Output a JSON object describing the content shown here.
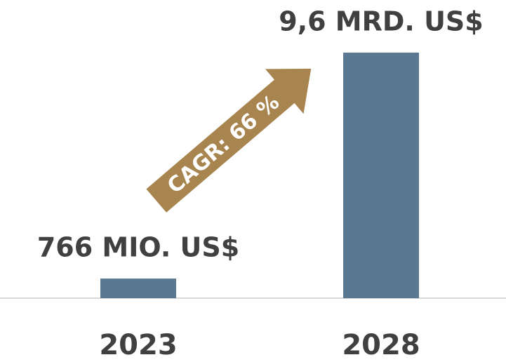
{
  "chart_data": {
    "type": "bar",
    "categories": [
      "2023",
      "2028"
    ],
    "values": [
      766000000,
      9600000000
    ],
    "value_labels": [
      "766 MIO. US$",
      "9,6 MRD. US$"
    ],
    "color": "#5b7893",
    "ylim": [
      0,
      9600000000
    ],
    "annotations": [
      {
        "text": "CAGR: 66 %"
      }
    ]
  }
}
